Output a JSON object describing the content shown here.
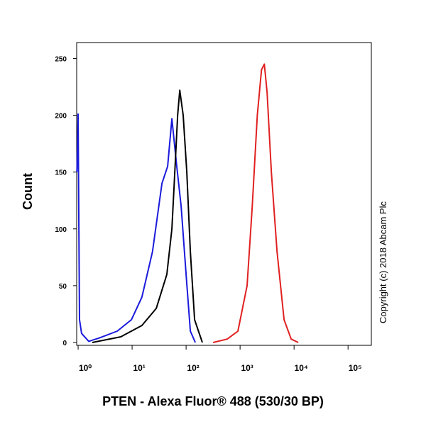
{
  "chart_data": {
    "type": "line",
    "xlabel": "PTEN - Alexa Fluor® 488 (530/30 BP)",
    "ylabel": "Count",
    "annotation": "Copyright (c) 2018 Abcam Plc",
    "xscale": "log",
    "xlim": [
      0.94,
      270000
    ],
    "ylim": [
      -2.5,
      264
    ],
    "xticks": [
      {
        "value": 1,
        "label": "10⁰"
      },
      {
        "value": 10,
        "label": "10¹"
      },
      {
        "value": 100,
        "label": "10²"
      },
      {
        "value": 1000,
        "label": "10³"
      },
      {
        "value": 10000,
        "label": "10⁴"
      },
      {
        "value": 100000,
        "label": "10⁵"
      }
    ],
    "yticks": [
      0,
      50,
      100,
      150,
      200,
      250
    ],
    "series": [
      {
        "color": "#1a1adc",
        "x": [
          0.95,
          1,
          1.06,
          1.16,
          1.575,
          2.48,
          5.3,
          9.7,
          15.2,
          23.9,
          35.7,
          45.5,
          54.6,
          65.5,
          81,
          100,
          120,
          148
        ],
        "values": [
          150,
          201,
          20,
          8,
          1,
          4,
          10,
          20,
          40,
          80,
          140,
          155,
          197,
          160,
          120,
          60,
          10,
          0
        ]
      },
      {
        "color": "#000000",
        "x": [
          1.83,
          6.16,
          15.2,
          28,
          44,
          54.6,
          61.8,
          69.7,
          76.3,
          88.4,
          103,
          120,
          144,
          200
        ],
        "values": [
          0,
          5,
          15,
          30,
          60,
          100,
          150,
          200,
          222,
          200,
          150,
          80,
          20,
          0
        ]
      },
      {
        "color": "#e02020",
        "x": [
          316,
          577,
          912,
          1349,
          1683,
          2085,
          2491,
          2810,
          3170,
          3803,
          4832,
          6540,
          8850,
          11970
        ],
        "values": [
          0,
          3,
          10,
          50,
          120,
          200,
          240,
          245,
          220,
          150,
          80,
          20,
          3,
          0
        ]
      }
    ]
  }
}
